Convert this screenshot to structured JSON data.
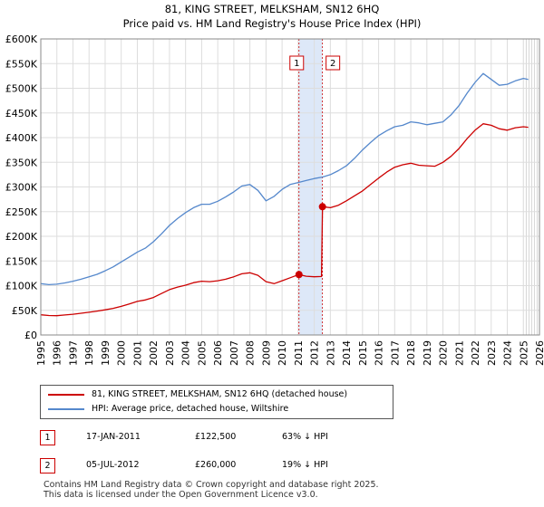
{
  "chart_data": {
    "type": "line",
    "title": "81, KING STREET, MELKSHAM, SN12 6HQ",
    "subtitle": "Price paid vs. HM Land Registry's House Price Index (HPI)",
    "xlim": [
      1995,
      2026
    ],
    "ylim": [
      0,
      600000
    ],
    "x_ticks": [
      1995,
      1996,
      1997,
      1998,
      1999,
      2000,
      2001,
      2002,
      2003,
      2004,
      2005,
      2006,
      2007,
      2008,
      2009,
      2010,
      2011,
      2012,
      2013,
      2014,
      2015,
      2016,
      2017,
      2018,
      2019,
      2020,
      2021,
      2022,
      2023,
      2024,
      2025,
      2026
    ],
    "y_ticks": [
      {
        "value": 0,
        "label": "£0"
      },
      {
        "value": 50000,
        "label": "£50K"
      },
      {
        "value": 100000,
        "label": "£100K"
      },
      {
        "value": 150000,
        "label": "£150K"
      },
      {
        "value": 200000,
        "label": "£200K"
      },
      {
        "value": 250000,
        "label": "£250K"
      },
      {
        "value": 300000,
        "label": "£300K"
      },
      {
        "value": 350000,
        "label": "£350K"
      },
      {
        "value": 400000,
        "label": "£400K"
      },
      {
        "value": 450000,
        "label": "£450K"
      },
      {
        "value": 500000,
        "label": "£500K"
      },
      {
        "value": 550000,
        "label": "£550K"
      },
      {
        "value": 600000,
        "label": "£600K"
      }
    ],
    "grid": true,
    "shaded_span": [
      2011.05,
      2012.5
    ],
    "forecast_start": 2025.0,
    "series": [
      {
        "name": "81, KING STREET, MELKSHAM, SN12 6HQ (detached house)",
        "color": "#cc0000",
        "points": [
          [
            1995.0,
            41000
          ],
          [
            1995.5,
            39500
          ],
          [
            1996.0,
            39000
          ],
          [
            1996.5,
            40500
          ],
          [
            1997.0,
            42000
          ],
          [
            1997.5,
            44000
          ],
          [
            1998.0,
            46000
          ],
          [
            1998.5,
            48500
          ],
          [
            1999.0,
            51000
          ],
          [
            1999.5,
            54000
          ],
          [
            2000.0,
            58000
          ],
          [
            2000.5,
            63000
          ],
          [
            2001.0,
            68000
          ],
          [
            2001.5,
            71000
          ],
          [
            2002.0,
            76000
          ],
          [
            2002.5,
            84000
          ],
          [
            2003.0,
            92000
          ],
          [
            2003.5,
            97000
          ],
          [
            2004.0,
            101000
          ],
          [
            2004.5,
            106000
          ],
          [
            2005.0,
            109000
          ],
          [
            2005.5,
            108000
          ],
          [
            2006.0,
            110000
          ],
          [
            2006.5,
            113000
          ],
          [
            2007.0,
            118000
          ],
          [
            2007.5,
            124000
          ],
          [
            2008.0,
            126000
          ],
          [
            2008.5,
            121000
          ],
          [
            2009.0,
            108000
          ],
          [
            2009.5,
            104000
          ],
          [
            2010.0,
            110000
          ],
          [
            2010.5,
            116000
          ],
          [
            2011.05,
            122500
          ],
          [
            2011.5,
            119000
          ],
          [
            2012.0,
            118000
          ],
          [
            2012.45,
            118500
          ],
          [
            2012.51,
            260000
          ],
          [
            2013.0,
            258000
          ],
          [
            2013.5,
            263000
          ],
          [
            2014.0,
            272000
          ],
          [
            2014.5,
            282000
          ],
          [
            2015.0,
            292000
          ],
          [
            2015.5,
            305000
          ],
          [
            2016.0,
            318000
          ],
          [
            2016.5,
            330000
          ],
          [
            2017.0,
            340000
          ],
          [
            2017.5,
            345000
          ],
          [
            2018.0,
            348000
          ],
          [
            2018.5,
            344000
          ],
          [
            2019.0,
            343000
          ],
          [
            2019.5,
            342000
          ],
          [
            2020.0,
            350000
          ],
          [
            2020.5,
            362000
          ],
          [
            2021.0,
            378000
          ],
          [
            2021.5,
            398000
          ],
          [
            2022.0,
            415000
          ],
          [
            2022.5,
            428000
          ],
          [
            2023.0,
            425000
          ],
          [
            2023.5,
            418000
          ],
          [
            2024.0,
            415000
          ],
          [
            2024.5,
            420000
          ],
          [
            2025.0,
            422000
          ],
          [
            2025.3,
            421000
          ]
        ]
      },
      {
        "name": "HPI: Average price, detached house, Wiltshire",
        "color": "#5588cc",
        "points": [
          [
            1995.0,
            104000
          ],
          [
            1995.5,
            102000
          ],
          [
            1996.0,
            103000
          ],
          [
            1996.5,
            105500
          ],
          [
            1997.0,
            109000
          ],
          [
            1997.5,
            113000
          ],
          [
            1998.0,
            118000
          ],
          [
            1998.5,
            123000
          ],
          [
            1999.0,
            130000
          ],
          [
            1999.5,
            138000
          ],
          [
            2000.0,
            148000
          ],
          [
            2000.5,
            158000
          ],
          [
            2001.0,
            168000
          ],
          [
            2001.5,
            176000
          ],
          [
            2002.0,
            189000
          ],
          [
            2002.5,
            205000
          ],
          [
            2003.0,
            222000
          ],
          [
            2003.5,
            236000
          ],
          [
            2004.0,
            248000
          ],
          [
            2004.5,
            258000
          ],
          [
            2005.0,
            265000
          ],
          [
            2005.5,
            265000
          ],
          [
            2006.0,
            271000
          ],
          [
            2006.5,
            280000
          ],
          [
            2007.0,
            290000
          ],
          [
            2007.5,
            302000
          ],
          [
            2008.0,
            305000
          ],
          [
            2008.5,
            293000
          ],
          [
            2009.0,
            272000
          ],
          [
            2009.5,
            281000
          ],
          [
            2010.0,
            295000
          ],
          [
            2010.5,
            305000
          ],
          [
            2011.0,
            309000
          ],
          [
            2011.5,
            313000
          ],
          [
            2012.0,
            317000
          ],
          [
            2012.5,
            320000
          ],
          [
            2013.0,
            325000
          ],
          [
            2013.5,
            333000
          ],
          [
            2014.0,
            343000
          ],
          [
            2014.5,
            358000
          ],
          [
            2015.0,
            375000
          ],
          [
            2015.5,
            390000
          ],
          [
            2016.0,
            404000
          ],
          [
            2016.5,
            414000
          ],
          [
            2017.0,
            422000
          ],
          [
            2017.5,
            425000
          ],
          [
            2018.0,
            432000
          ],
          [
            2018.5,
            430000
          ],
          [
            2019.0,
            426000
          ],
          [
            2019.5,
            429000
          ],
          [
            2020.0,
            432000
          ],
          [
            2020.5,
            446000
          ],
          [
            2021.0,
            465000
          ],
          [
            2021.5,
            490000
          ],
          [
            2022.0,
            512000
          ],
          [
            2022.5,
            530000
          ],
          [
            2023.0,
            518000
          ],
          [
            2023.5,
            506000
          ],
          [
            2024.0,
            508000
          ],
          [
            2024.5,
            515000
          ],
          [
            2025.0,
            520000
          ],
          [
            2025.3,
            518000
          ]
        ]
      }
    ],
    "sale_markers": [
      {
        "label": "1",
        "x": 2011.05,
        "value": 122500
      },
      {
        "label": "2",
        "x": 2012.51,
        "value": 260000
      }
    ]
  },
  "legend": {
    "property": "81, KING STREET, MELKSHAM, SN12 6HQ (detached house)",
    "hpi": "HPI: Average price, detached house, Wiltshire"
  },
  "transactions": [
    {
      "num": "1",
      "date": "17-JAN-2011",
      "price": "£122,500",
      "hpi": "63% ↓ HPI"
    },
    {
      "num": "2",
      "date": "05-JUL-2012",
      "price": "£260,000",
      "hpi": "19% ↓ HPI"
    }
  ],
  "footer": {
    "line1": "Contains HM Land Registry data © Crown copyright and database right 2025.",
    "line2": "This data is licensed under the Open Government Licence v3.0."
  },
  "colors": {
    "property": "#cc0000",
    "hpi": "#5588cc",
    "grid": "#dddddd",
    "shade": "#dde8f8"
  }
}
